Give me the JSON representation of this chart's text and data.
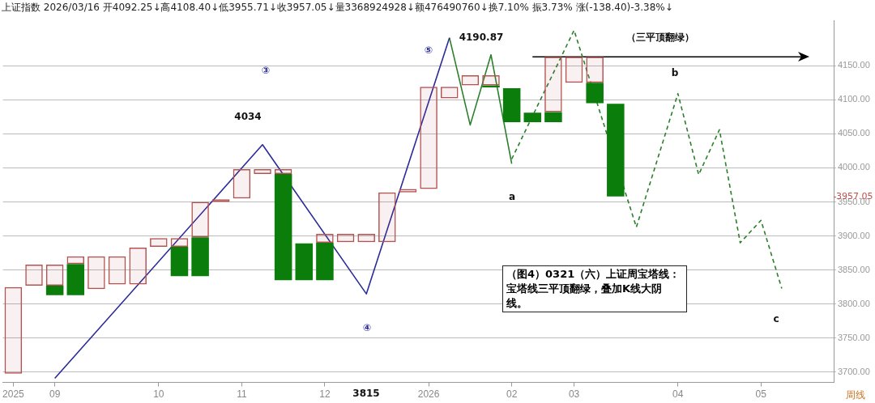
{
  "chart_data": {
    "type": "bar",
    "title": "上证指数 2026/03/16 开4092.25↓高4108.40↓低3955.71↓收3957.05↓量3368924928↓额476490760↓换7.10% 振3.73% 涨(-138.40)-3.38%↓",
    "categories": [
      "2025",
      null,
      "09",
      null,
      null,
      null,
      null,
      "10",
      null,
      null,
      null,
      "11",
      null,
      null,
      null,
      "12",
      null,
      null,
      null,
      null,
      "2026",
      null,
      null,
      null,
      "02",
      null,
      null,
      "03",
      null,
      null,
      null,
      null,
      "04",
      null,
      null,
      null,
      "05",
      null,
      null,
      null
    ],
    "series": [
      {
        "color": "#b5514f",
        "base": [
          3698,
          3827,
          3827,
          3859,
          3822,
          3829,
          3829,
          3884,
          3884,
          3898,
          3950,
          3955,
          3991,
          3991,
          null,
          3890,
          3891,
          3891,
          3891,
          3964,
          3969,
          4102,
          4121,
          4121,
          null,
          null,
          4082,
          4125,
          4125,
          null,
          null,
          null,
          null,
          null,
          null,
          null,
          null,
          null,
          null,
          null
        ],
        "values": [
          127,
          31,
          31,
          11,
          48,
          41,
          54,
          13,
          13,
          52,
          4,
          43,
          7,
          7,
          null,
          13,
          12,
          12,
          73,
          5,
          150,
          17,
          15,
          15,
          null,
          null,
          81,
          38,
          38,
          null,
          null,
          null,
          null,
          null,
          null,
          null,
          null,
          null,
          null,
          null
        ]
      },
      {
        "color": "#0a7d0a",
        "base": [
          null,
          null,
          3813,
          3813,
          null,
          null,
          null,
          null,
          3841,
          3841,
          null,
          null,
          null,
          3835,
          3835,
          3835,
          null,
          null,
          null,
          null,
          null,
          null,
          null,
          4118,
          4067,
          4067,
          4067,
          null,
          4095,
          3958,
          null,
          null,
          null,
          null,
          null,
          null,
          null,
          null,
          null,
          null
        ],
        "values": [
          null,
          null,
          14,
          46,
          null,
          null,
          null,
          null,
          43,
          57,
          null,
          null,
          null,
          156,
          54,
          55,
          null,
          null,
          null,
          null,
          null,
          null,
          null,
          3,
          50,
          14,
          15,
          null,
          30,
          136,
          null,
          null,
          null,
          null,
          null,
          null,
          null,
          null,
          null,
          null
        ]
      },
      {
        "type": "line",
        "color": "#2b2b9a",
        "values": [
          null,
          null,
          3691,
          null,
          null,
          null,
          null,
          null,
          null,
          null,
          null,
          null,
          4034,
          null,
          null,
          null,
          null,
          3815,
          null,
          null,
          null,
          4191,
          null,
          null,
          null,
          null,
          null,
          null,
          null,
          null,
          null,
          null,
          null,
          null,
          null,
          null,
          null,
          null,
          null,
          null
        ]
      },
      {
        "type": "line",
        "color": "#2a7f2a",
        "values": [
          null,
          null,
          null,
          null,
          null,
          null,
          null,
          null,
          null,
          null,
          null,
          null,
          null,
          null,
          null,
          null,
          null,
          null,
          null,
          null,
          null,
          4191,
          4063,
          4166,
          4006,
          null,
          null,
          null,
          null,
          null,
          null,
          null,
          null,
          null,
          null,
          null,
          null,
          null,
          null,
          null
        ]
      },
      {
        "type": "line",
        "color": "#2a7f2a",
        "line_style": "dashed",
        "values": [
          null,
          null,
          null,
          null,
          null,
          null,
          null,
          null,
          null,
          null,
          null,
          null,
          null,
          null,
          null,
          null,
          null,
          null,
          null,
          null,
          null,
          null,
          null,
          null,
          4013,
          null,
          null,
          4202,
          null,
          null,
          3913,
          null,
          4109,
          3990,
          4056,
          3890,
          3923,
          3823,
          null,
          null
        ]
      },
      {
        "type": "line",
        "color": "#000000",
        "values": [
          null,
          null,
          null,
          null,
          null,
          null,
          null,
          null,
          null,
          null,
          null,
          null,
          null,
          null,
          null,
          null,
          null,
          null,
          null,
          null,
          null,
          null,
          null,
          null,
          null,
          4163,
          null,
          null,
          null,
          null,
          null,
          null,
          null,
          null,
          null,
          null,
          null,
          null,
          4163,
          null
        ]
      }
    ],
    "ylim": [
      3685,
      4216
    ],
    "yticks": [
      {
        "value": 3700,
        "label": "3700.00"
      },
      {
        "value": 3750,
        "label": "3750.00"
      },
      {
        "value": 3800,
        "label": "3800.00"
      },
      {
        "value": 3850,
        "label": "3850.00"
      },
      {
        "value": 3900,
        "label": "3900.00"
      },
      {
        "value": 3950,
        "label": "3950.00"
      },
      {
        "value": 4000,
        "label": "4000.00"
      },
      {
        "value": 4050,
        "label": "4050.00"
      },
      {
        "value": 4100,
        "label": "4100.00"
      },
      {
        "value": 4150,
        "label": "4150.00"
      }
    ],
    "grid": "y",
    "legend": false,
    "ref_lines": [
      {
        "axis": "y",
        "value": 3957.05,
        "label": "3957.05",
        "color": "#c0504d"
      }
    ],
    "annotations": [
      "（图4）0321（六）上证周宝塔线：宝塔线三平顶翻绿，叠加K线大阴线。",
      "周线",
      "③",
      "④",
      "⑤",
      "4034",
      "3815",
      "4190.87",
      "a",
      "b",
      "c",
      "（三平顶翻绿）"
    ]
  }
}
